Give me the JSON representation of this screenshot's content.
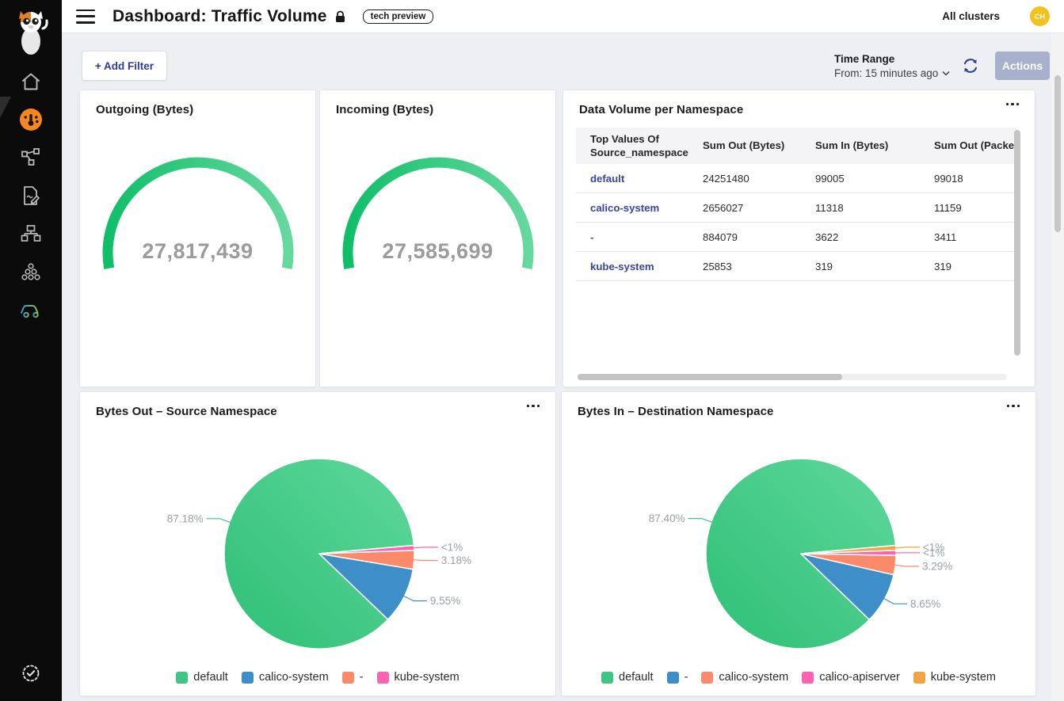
{
  "header": {
    "title": "Dashboard: Traffic Volume",
    "badge": "tech preview",
    "all_clusters": "All clusters",
    "avatar_initials": "CH"
  },
  "filter_bar": {
    "add_filter": "+ Add Filter",
    "time_range_label": "Time Range",
    "time_range_value": "From: 15 minutes ago",
    "actions": "Actions"
  },
  "sidebar": {
    "icons": [
      "cat-logo",
      "home",
      "gauge-dashboard-active",
      "topology",
      "document-pencil",
      "network-tree",
      "nodes-cluster",
      "car",
      "verified-badge"
    ]
  },
  "colors": {
    "accent_orange": "#f6871f",
    "green": "#3fc584",
    "blue": "#3e8ec8",
    "salmon": "#fa8a6a",
    "pink": "#fb63b2",
    "orange": "#f2a440",
    "link_indigo": "#3644a5",
    "avatar_yellow": "#f2c21d"
  },
  "chart_data": [
    {
      "type": "gauge",
      "title": "Outgoing (Bytes)",
      "value": 27817439,
      "display": "27,817,439"
    },
    {
      "type": "gauge",
      "title": "Incoming (Bytes)",
      "value": 27585699,
      "display": "27,585,699"
    },
    {
      "type": "table",
      "title": "Data Volume per Namespace",
      "columns": [
        "Top Values Of Source_namespace",
        "Sum Out (Bytes)",
        "Sum In (Bytes)",
        "Sum Out (Packets)"
      ],
      "rows": [
        [
          "default",
          "24251480",
          "99005",
          "99018"
        ],
        [
          "calico-system",
          "2656027",
          "11318",
          "11159"
        ],
        [
          "-",
          "884079",
          "3622",
          "3411"
        ],
        [
          "kube-system",
          "25853",
          "319",
          "319"
        ]
      ]
    },
    {
      "type": "pie",
      "title": "Bytes Out – Source Namespace",
      "legend_position": "bottom",
      "series": [
        {
          "label": "default",
          "pct": 87.18,
          "pct_label": "87.18%",
          "color": "#3fc584",
          "gradient": true
        },
        {
          "label": "calico-system",
          "pct": 9.55,
          "pct_label": "9.55%",
          "color": "#3e8ec8"
        },
        {
          "label": "-",
          "pct": 3.18,
          "pct_label": "3.18%",
          "color": "#fa8a6a"
        },
        {
          "label": "kube-system",
          "pct": 0.09,
          "pct_label": "<1%",
          "color": "#fb63b2"
        }
      ]
    },
    {
      "type": "pie",
      "title": "Bytes In – Destination Namespace",
      "legend_position": "bottom",
      "series": [
        {
          "label": "default",
          "pct": 87.4,
          "pct_label": "87.40%",
          "color": "#3fc584",
          "gradient": true
        },
        {
          "label": "-",
          "pct": 8.65,
          "pct_label": "8.65%",
          "color": "#3e8ec8"
        },
        {
          "label": "calico-system",
          "pct": 3.29,
          "pct_label": "3.29%",
          "color": "#fa8a6a"
        },
        {
          "label": "calico-apiserver",
          "pct": 0.33,
          "pct_label": "<1%",
          "color": "#fb63b2"
        },
        {
          "label": "kube-system",
          "pct": 0.33,
          "pct_label": "<1%",
          "color": "#f2a440"
        }
      ]
    }
  ]
}
